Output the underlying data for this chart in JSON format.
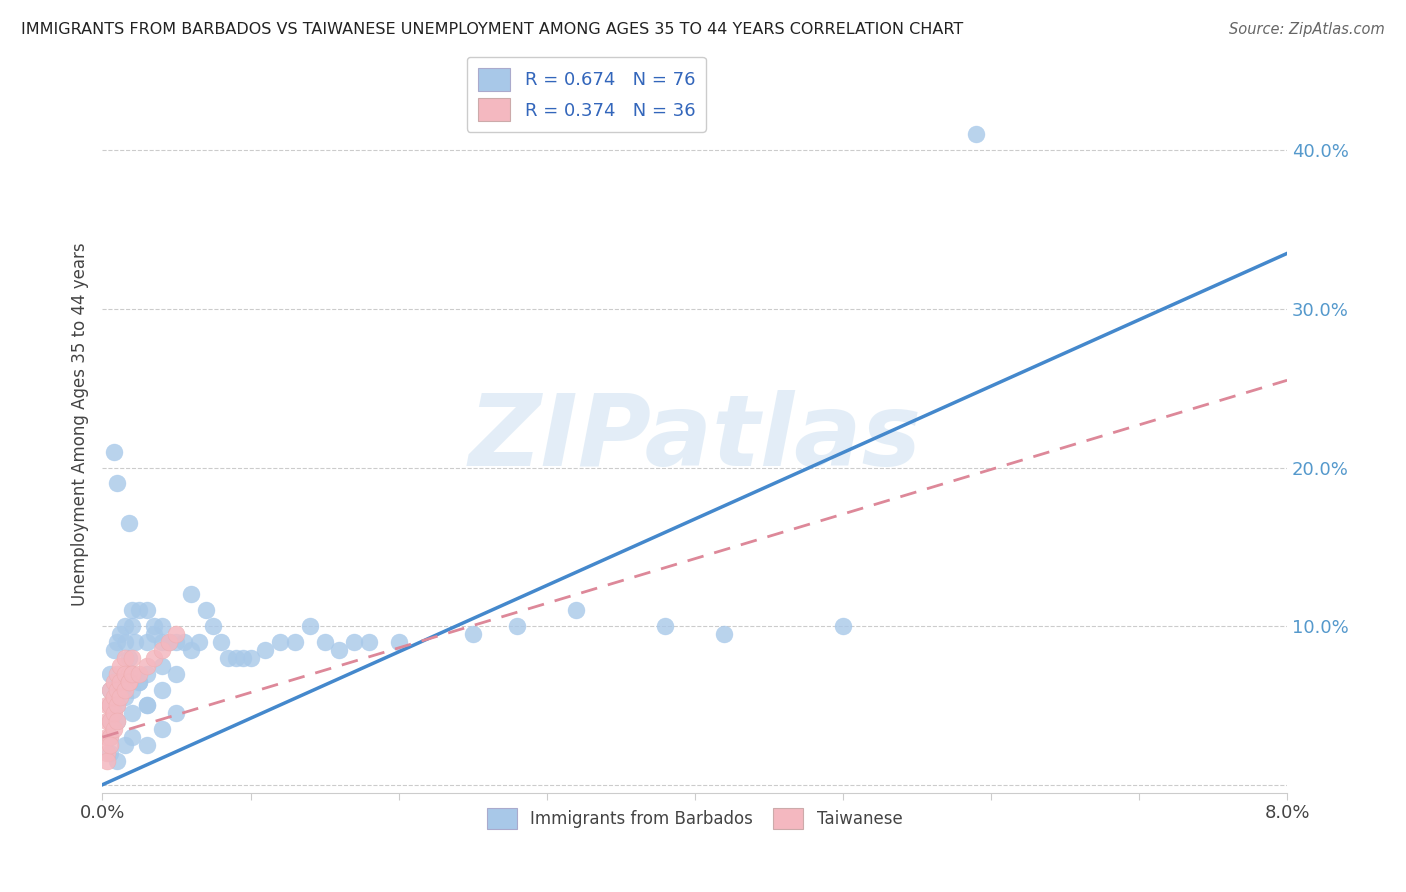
{
  "title": "IMMIGRANTS FROM BARBADOS VS TAIWANESE UNEMPLOYMENT AMONG AGES 35 TO 44 YEARS CORRELATION CHART",
  "source": "Source: ZipAtlas.com",
  "ylabel": "Unemployment Among Ages 35 to 44 years",
  "xlim": [
    0.0,
    0.08
  ],
  "ylim": [
    -0.005,
    0.46
  ],
  "watermark": "ZIPatlas",
  "legend_line1": "R = 0.674   N = 76",
  "legend_line2": "R = 0.374   N = 36",
  "blue_color": "#a8c8e8",
  "pink_color": "#f4b8c0",
  "blue_line_color": "#4488cc",
  "pink_line_color": "#dd8899",
  "blue_line_x0": 0.0,
  "blue_line_y0": 0.0,
  "blue_line_x1": 0.08,
  "blue_line_y1": 0.335,
  "pink_line_x0": 0.0,
  "pink_line_y0": 0.03,
  "pink_line_x1": 0.08,
  "pink_line_y1": 0.255,
  "ytick_positions": [
    0.0,
    0.1,
    0.2,
    0.3,
    0.4
  ],
  "ytick_labels_right": [
    "",
    "10.0%",
    "20.0%",
    "30.0%",
    "40.0%"
  ],
  "xtick_positions": [
    0.0,
    0.01,
    0.02,
    0.03,
    0.04,
    0.05,
    0.06,
    0.07,
    0.08
  ],
  "blue_scatter_x": [
    0.0005,
    0.001,
    0.0015,
    0.002,
    0.0008,
    0.0012,
    0.0018,
    0.0022,
    0.0005,
    0.001,
    0.0015,
    0.002,
    0.0025,
    0.003,
    0.0035,
    0.004,
    0.0045,
    0.005,
    0.0055,
    0.006,
    0.0065,
    0.007,
    0.0075,
    0.008,
    0.0085,
    0.009,
    0.0095,
    0.01,
    0.011,
    0.012,
    0.013,
    0.014,
    0.015,
    0.016,
    0.017,
    0.018,
    0.0005,
    0.001,
    0.0015,
    0.002,
    0.0025,
    0.003,
    0.0035,
    0.004,
    0.0005,
    0.001,
    0.0015,
    0.002,
    0.0025,
    0.003,
    0.003,
    0.004,
    0.0005,
    0.001,
    0.002,
    0.003,
    0.004,
    0.005,
    0.006,
    0.0005,
    0.001,
    0.0015,
    0.002,
    0.003,
    0.004,
    0.005,
    0.02,
    0.025,
    0.028,
    0.032,
    0.038,
    0.042,
    0.05,
    0.059,
    0.0008,
    0.0018
  ],
  "blue_scatter_y": [
    0.07,
    0.09,
    0.1,
    0.11,
    0.085,
    0.095,
    0.08,
    0.09,
    0.06,
    0.19,
    0.09,
    0.1,
    0.11,
    0.11,
    0.1,
    0.1,
    0.09,
    0.09,
    0.09,
    0.12,
    0.09,
    0.11,
    0.1,
    0.09,
    0.08,
    0.08,
    0.08,
    0.08,
    0.085,
    0.09,
    0.09,
    0.1,
    0.09,
    0.085,
    0.09,
    0.09,
    0.05,
    0.06,
    0.065,
    0.07,
    0.065,
    0.09,
    0.095,
    0.09,
    0.04,
    0.05,
    0.055,
    0.06,
    0.065,
    0.07,
    0.05,
    0.075,
    0.03,
    0.04,
    0.045,
    0.05,
    0.06,
    0.07,
    0.085,
    0.02,
    0.015,
    0.025,
    0.03,
    0.025,
    0.035,
    0.045,
    0.09,
    0.095,
    0.1,
    0.11,
    0.1,
    0.095,
    0.1,
    0.41,
    0.21,
    0.165
  ],
  "pink_scatter_x": [
    0.0003,
    0.0005,
    0.0008,
    0.001,
    0.0012,
    0.0015,
    0.0018,
    0.002,
    0.0003,
    0.0005,
    0.0008,
    0.001,
    0.0012,
    0.0015,
    0.0018,
    0.002,
    0.0003,
    0.0005,
    0.0008,
    0.001,
    0.0012,
    0.0015,
    0.0018,
    0.002,
    0.0003,
    0.0005,
    0.0008,
    0.001,
    0.0003,
    0.0005,
    0.0025,
    0.003,
    0.0035,
    0.004,
    0.0045,
    0.005
  ],
  "pink_scatter_y": [
    0.05,
    0.06,
    0.065,
    0.07,
    0.075,
    0.08,
    0.07,
    0.08,
    0.04,
    0.05,
    0.055,
    0.06,
    0.065,
    0.07,
    0.065,
    0.07,
    0.03,
    0.04,
    0.045,
    0.05,
    0.055,
    0.06,
    0.065,
    0.07,
    0.02,
    0.03,
    0.035,
    0.04,
    0.015,
    0.025,
    0.07,
    0.075,
    0.08,
    0.085,
    0.09,
    0.095
  ]
}
